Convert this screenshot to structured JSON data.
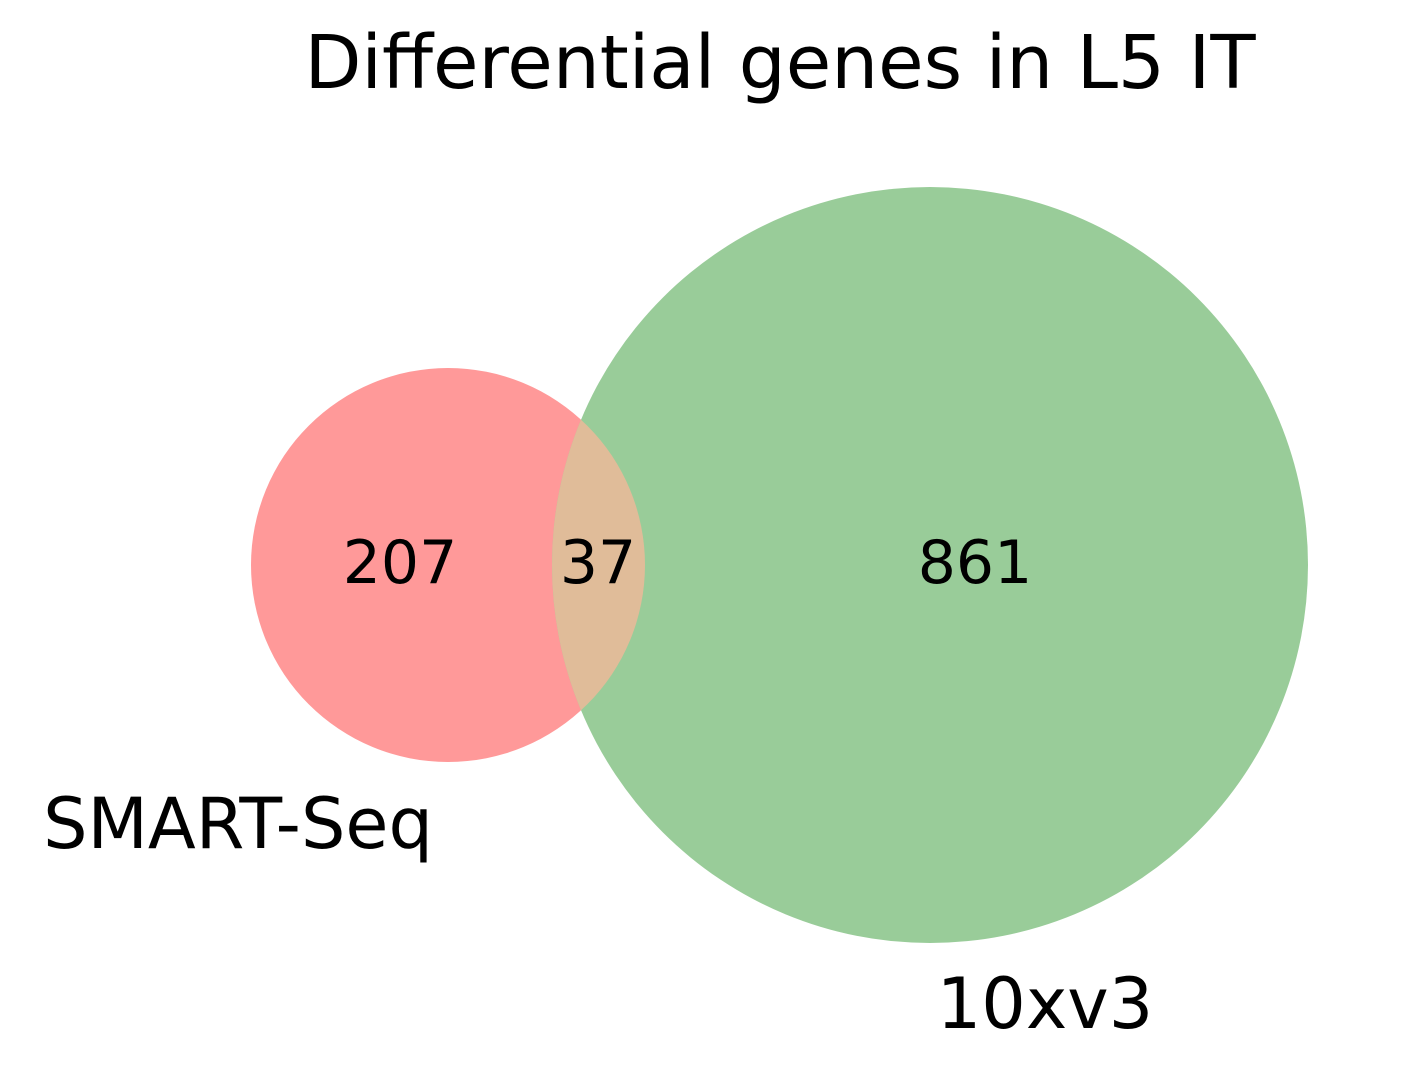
{
  "title": "Differential genes in L5 IT",
  "sets": [
    {
      "name": "SMART-Seq",
      "color": "#ff9999"
    },
    {
      "name": "10xv3",
      "color": "#99cc99"
    }
  ],
  "overlap_color": "#e0bc99",
  "counts": {
    "smart_seq_only": "207",
    "shared": "37",
    "tenx_only": "861"
  }
}
